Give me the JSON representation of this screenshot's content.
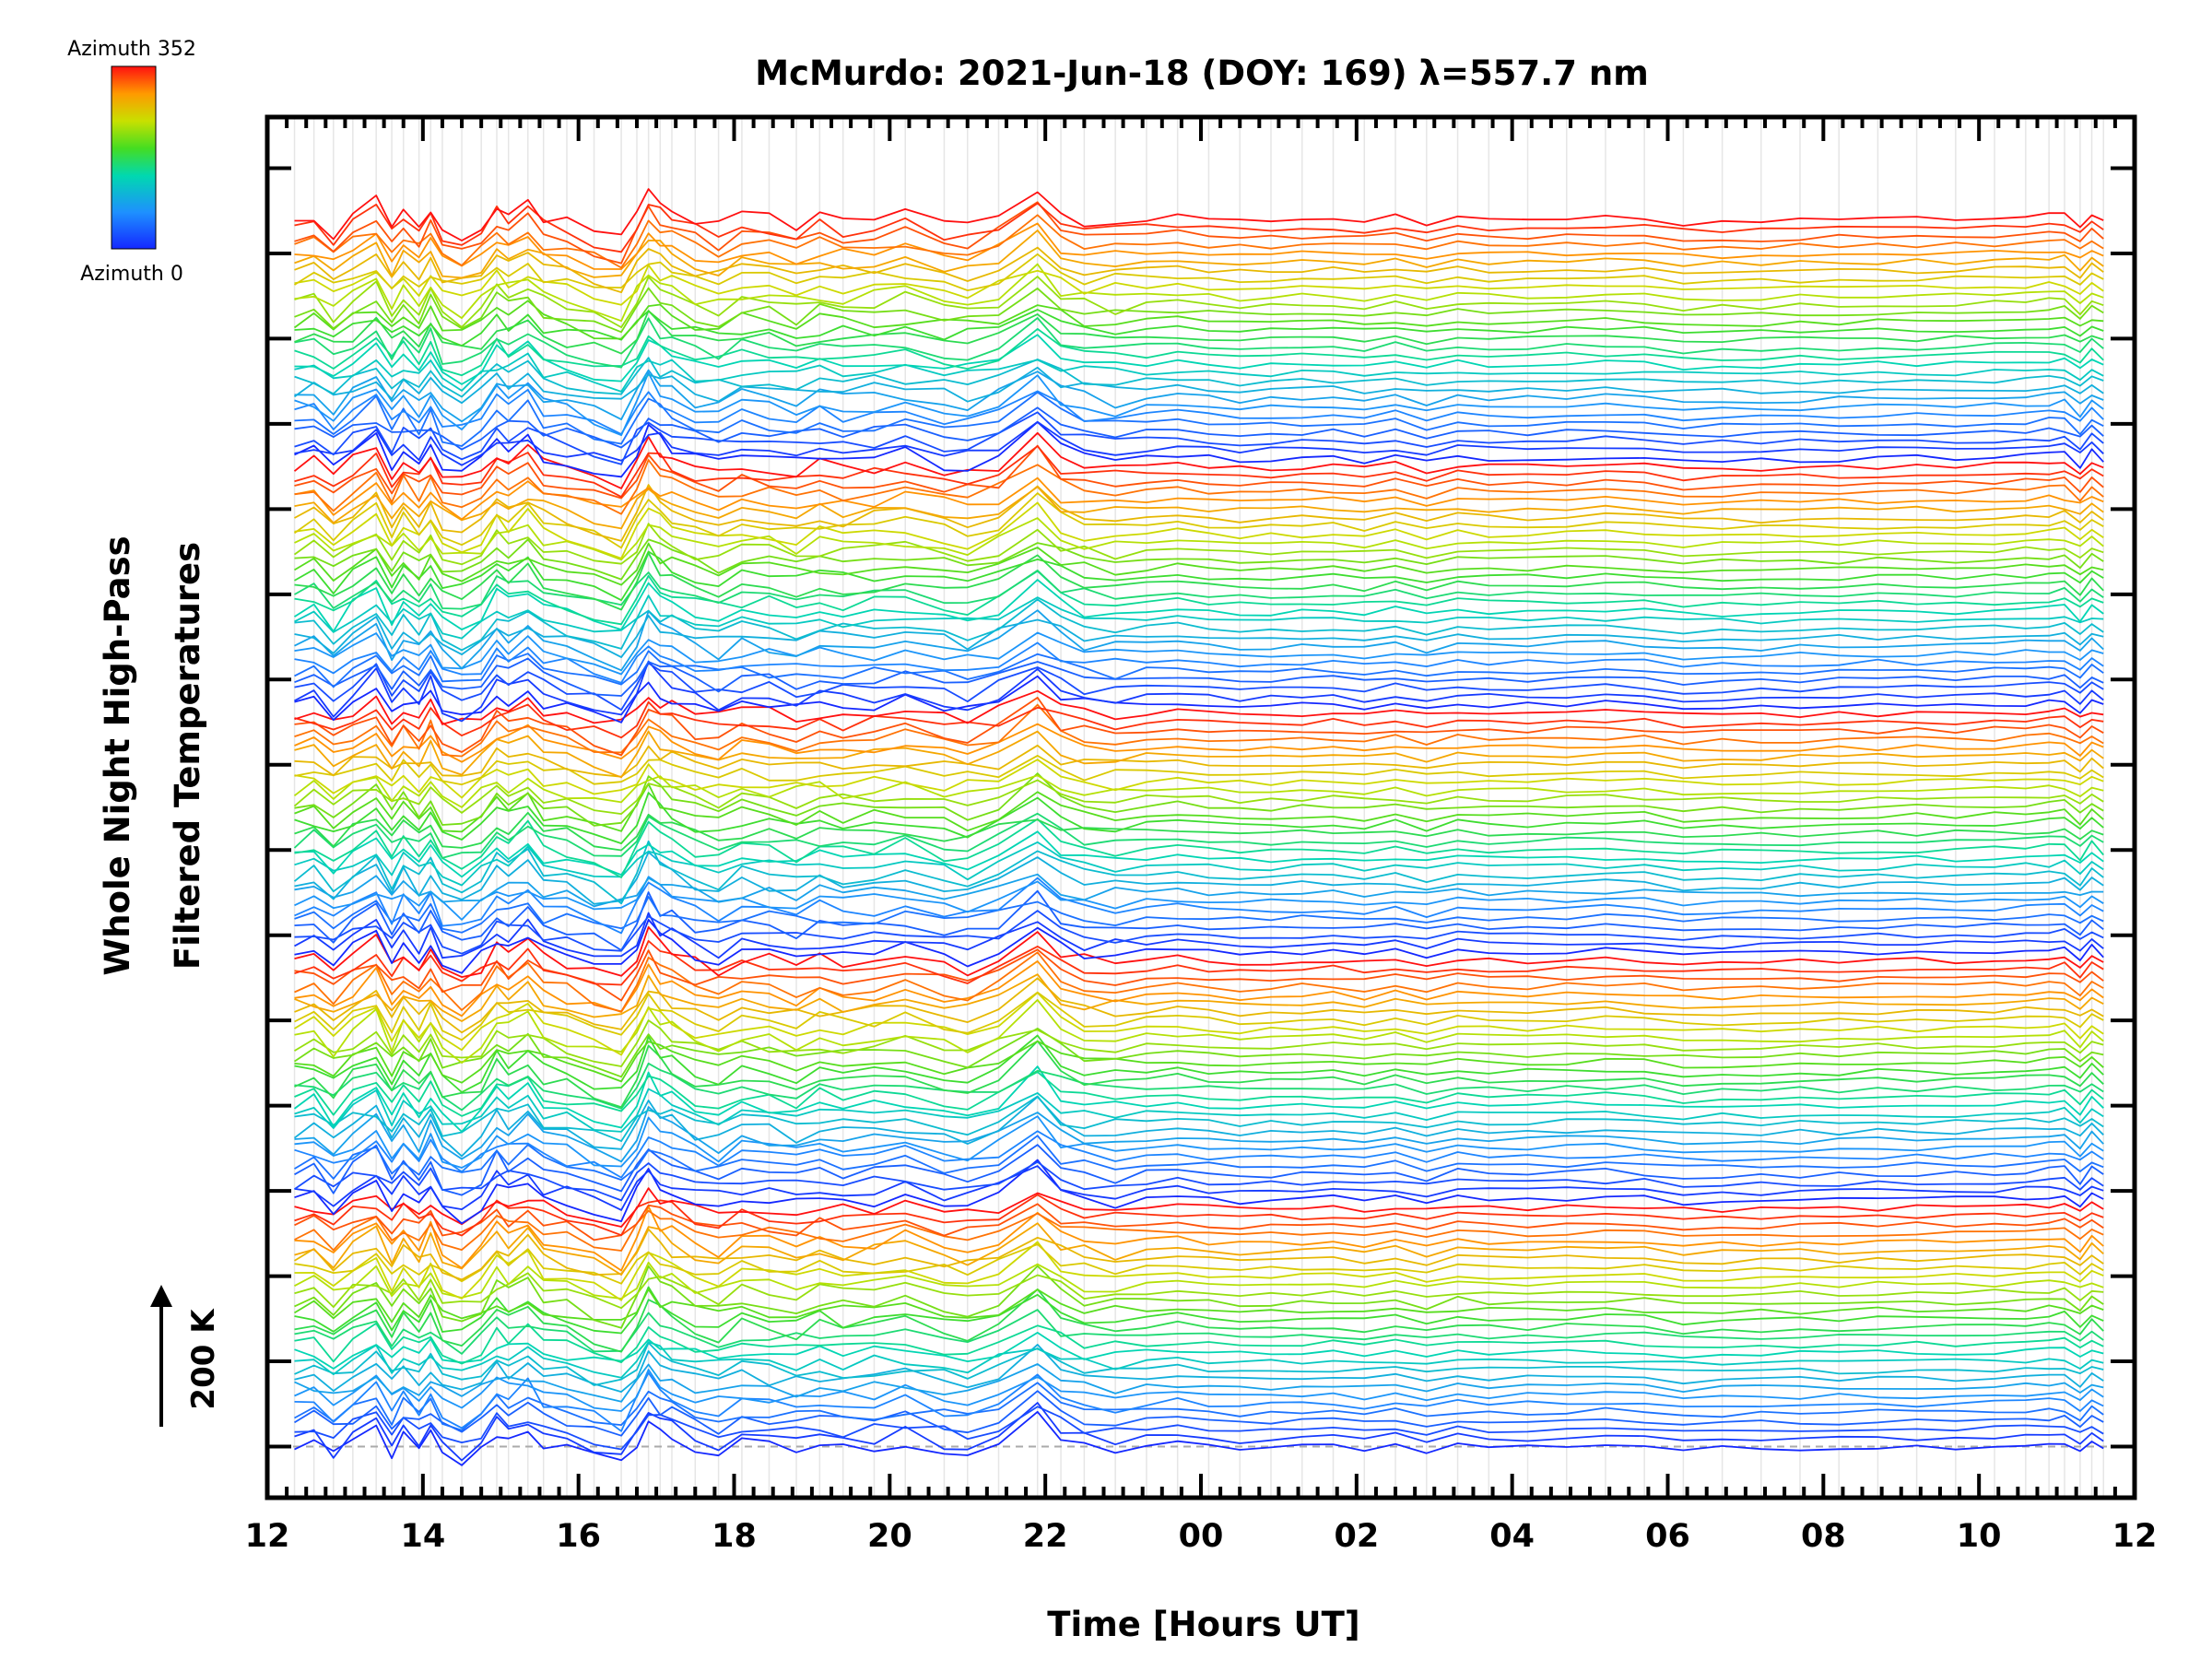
{
  "chart_data": {
    "type": "line",
    "title": "McMurdo: 2021-Jun-18 (DOY: 169) λ=557.7 nm",
    "xlabel": "Time [Hours UT]",
    "ylabel_line1": "Whole Night High-Pass",
    "ylabel_line2": "Filtered Temperatures",
    "scale_bar_label": "200 K",
    "colorbar": {
      "top_label": "Azimuth 352",
      "bottom_label": "Azimuth 0",
      "min": 0,
      "max": 352
    },
    "x_range_hours": [
      12.0,
      36.0
    ],
    "x_ticks": [
      {
        "h": 12,
        "label": "12"
      },
      {
        "h": 14,
        "label": "14"
      },
      {
        "h": 16,
        "label": "16"
      },
      {
        "h": 18,
        "label": "18"
      },
      {
        "h": 20,
        "label": "20"
      },
      {
        "h": 22,
        "label": "22"
      },
      {
        "h": 24,
        "label": "00"
      },
      {
        "h": 26,
        "label": "02"
      },
      {
        "h": 28,
        "label": "04"
      },
      {
        "h": 30,
        "label": "06"
      },
      {
        "h": 32,
        "label": "08"
      },
      {
        "h": 34,
        "label": "10"
      },
      {
        "h": 36,
        "label": "12"
      }
    ],
    "y_range_kelvin": [
      -120,
      3120
    ],
    "y_major_tick_step_kelvin": 200,
    "sample_times_hours": [
      12.35,
      12.6,
      12.85,
      13.1,
      13.4,
      13.6,
      13.75,
      13.95,
      14.1,
      14.25,
      14.5,
      14.75,
      14.95,
      15.1,
      15.35,
      15.55,
      15.85,
      16.2,
      16.55,
      16.75,
      16.9,
      17.05,
      17.2,
      17.5,
      17.8,
      18.1,
      18.45,
      18.8,
      19.1,
      19.4,
      19.8,
      20.2,
      20.7,
      21.0,
      21.4,
      21.9,
      22.2,
      22.5,
      22.9,
      23.3,
      23.7,
      24.1,
      24.5,
      24.9,
      25.3,
      25.7,
      26.1,
      26.5,
      26.9,
      27.3,
      27.7,
      28.2,
      28.7,
      29.2,
      29.7,
      30.2,
      30.7,
      31.2,
      31.7,
      32.2,
      32.7,
      33.2,
      33.7,
      34.2,
      34.6,
      34.9,
      35.1,
      35.3,
      35.45,
      35.6
    ],
    "event_signature_kelvin": [
      0,
      10,
      -25,
      10,
      40,
      -15,
      20,
      -10,
      25,
      -20,
      -35,
      -10,
      30,
      15,
      40,
      5,
      -5,
      -25,
      -40,
      10,
      55,
      30,
      20,
      -5,
      -15,
      5,
      0,
      -10,
      5,
      -5,
      0,
      10,
      -10,
      -15,
      5,
      60,
      15,
      0,
      -5,
      5,
      15,
      0,
      -10,
      -5,
      0,
      5,
      -10,
      10,
      -20,
      10,
      0,
      0,
      5,
      10,
      5,
      -15,
      -10,
      -10,
      -5,
      -5,
      0,
      0,
      0,
      5,
      10,
      15,
      20,
      -30,
      25,
      -10
    ],
    "series_count": 145,
    "baseline_kelvin": 0,
    "trace_spacing_kelvin": 20,
    "trace_pattern": "Each trace is one azimuth direction; 5 rings of 29 azimuths each (0-352 deg), offset upward by 20 K per trace. Values are high-pass filtered temperature perturbations around each trace's baseline."
  }
}
